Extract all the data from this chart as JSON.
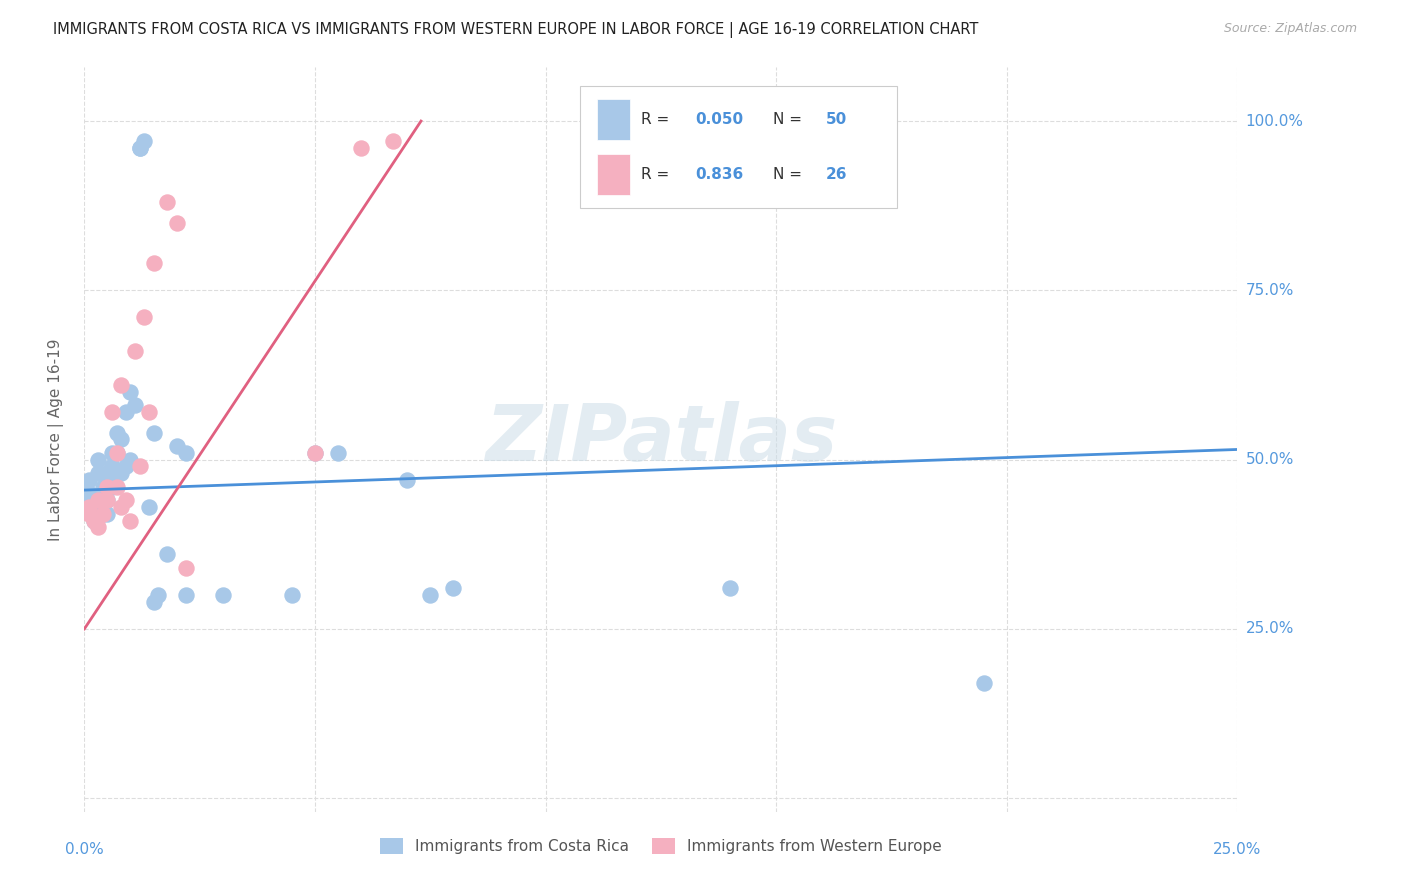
{
  "title": "IMMIGRANTS FROM COSTA RICA VS IMMIGRANTS FROM WESTERN EUROPE IN LABOR FORCE | AGE 16-19 CORRELATION CHART",
  "source": "Source: ZipAtlas.com",
  "ylabel": "In Labor Force | Age 16-19",
  "watermark": "ZIPatlas",
  "blue_color": "#a8c8e8",
  "pink_color": "#f5b0c0",
  "blue_line_color": "#4a90d9",
  "pink_line_color": "#e06080",
  "axis_label_color": "#5599dd",
  "xlim": [
    0.0,
    0.25
  ],
  "ylim": [
    -0.02,
    1.08
  ],
  "yticks": [
    0.0,
    0.25,
    0.5,
    0.75,
    1.0
  ],
  "xticks": [
    0.0,
    0.05,
    0.1,
    0.15,
    0.2,
    0.25
  ],
  "blue_x": [
    0.001,
    0.001,
    0.001,
    0.002,
    0.002,
    0.002,
    0.003,
    0.003,
    0.003,
    0.003,
    0.004,
    0.004,
    0.004,
    0.005,
    0.005,
    0.005,
    0.005,
    0.006,
    0.006,
    0.006,
    0.007,
    0.007,
    0.007,
    0.008,
    0.008,
    0.009,
    0.009,
    0.01,
    0.01,
    0.011,
    0.012,
    0.012,
    0.013,
    0.014,
    0.015,
    0.015,
    0.016,
    0.018,
    0.02,
    0.022,
    0.022,
    0.03,
    0.045,
    0.05,
    0.055,
    0.07,
    0.075,
    0.08,
    0.14,
    0.195
  ],
  "blue_y": [
    0.44,
    0.45,
    0.47,
    0.42,
    0.43,
    0.41,
    0.5,
    0.48,
    0.44,
    0.43,
    0.46,
    0.44,
    0.42,
    0.48,
    0.46,
    0.44,
    0.42,
    0.51,
    0.49,
    0.46,
    0.54,
    0.51,
    0.48,
    0.53,
    0.48,
    0.57,
    0.49,
    0.6,
    0.5,
    0.58,
    0.96,
    0.96,
    0.97,
    0.43,
    0.29,
    0.54,
    0.3,
    0.36,
    0.52,
    0.51,
    0.3,
    0.3,
    0.3,
    0.51,
    0.51,
    0.47,
    0.3,
    0.31,
    0.31,
    0.17
  ],
  "pink_x": [
    0.001,
    0.001,
    0.002,
    0.003,
    0.003,
    0.004,
    0.005,
    0.005,
    0.006,
    0.007,
    0.007,
    0.008,
    0.008,
    0.009,
    0.01,
    0.011,
    0.012,
    0.013,
    0.014,
    0.015,
    0.018,
    0.02,
    0.022,
    0.05,
    0.06,
    0.067
  ],
  "pink_y": [
    0.43,
    0.42,
    0.41,
    0.44,
    0.4,
    0.42,
    0.46,
    0.44,
    0.57,
    0.51,
    0.46,
    0.61,
    0.43,
    0.44,
    0.41,
    0.66,
    0.49,
    0.71,
    0.57,
    0.79,
    0.88,
    0.85,
    0.34,
    0.51,
    0.96,
    0.97
  ],
  "blue_trend_x": [
    0.0,
    0.25
  ],
  "blue_trend_y": [
    0.455,
    0.515
  ],
  "pink_trend_x": [
    0.0,
    0.073
  ],
  "pink_trend_y": [
    0.25,
    1.0
  ],
  "legend_items": [
    {
      "label": "R = 0.050  N = 50",
      "r": "0.050",
      "n": "50",
      "color": "#a8c8e8"
    },
    {
      "label": "R = 0.836  N = 26",
      "r": "0.836",
      "n": "26",
      "color": "#f5b0c0"
    }
  ]
}
